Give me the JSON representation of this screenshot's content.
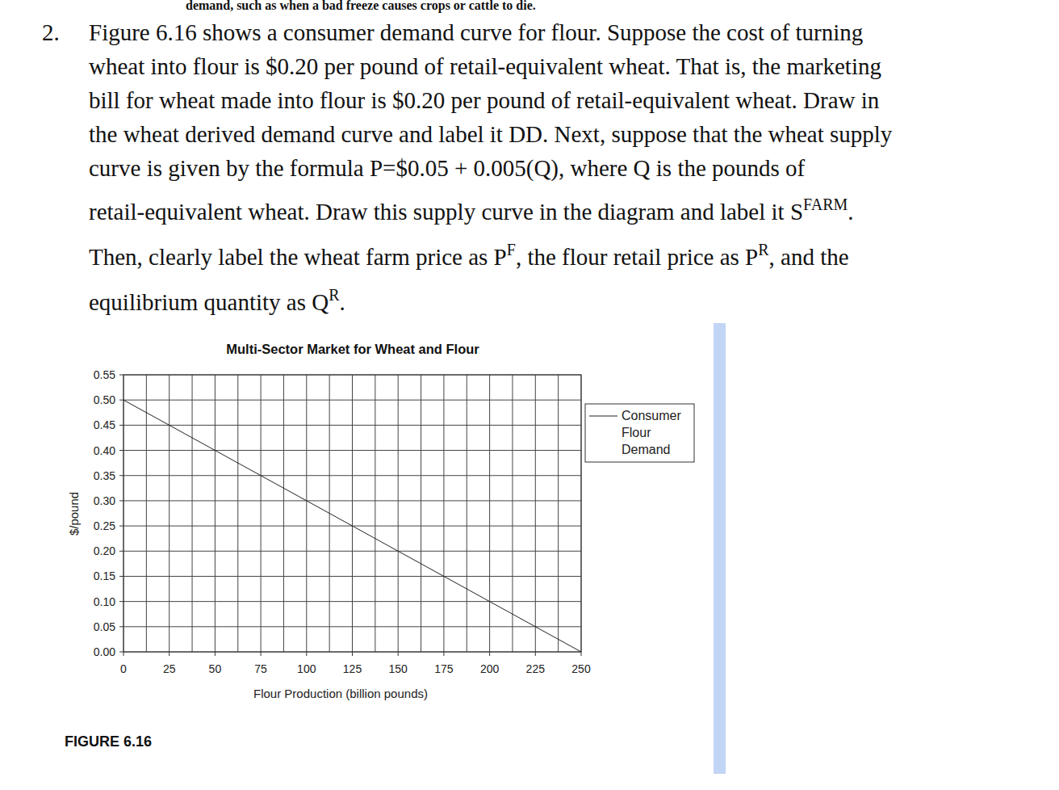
{
  "page": {
    "top_fragment": "demand, such as when a bad freeze causes crops or cattle to die.",
    "question": {
      "number": "2.",
      "lines": [
        [
          {
            "text": "Figure 6.16 shows a consumer demand curve for flour. Suppose the cost of turning"
          }
        ],
        [
          {
            "text": "wheat into flour is $0.20 per pound of retail-equivalent wheat. That is, the marketing"
          }
        ],
        [
          {
            "text": "bill for wheat made into flour is $0.20 per pound of retail-equivalent wheat. Draw in"
          }
        ],
        [
          {
            "text": "the wheat derived demand curve and label it DD. Next, suppose that the wheat supply"
          }
        ],
        [
          {
            "text": "curve is given by the formula P=$0.05 + 0.005(Q), where Q is the pounds of"
          }
        ],
        [
          {
            "text": "retail-equivalent wheat. Draw this supply curve in the diagram and label it S"
          },
          {
            "sup": "FARM"
          },
          {
            "text": "."
          }
        ],
        [
          {
            "text": "Then, clearly label the wheat farm price as P"
          },
          {
            "sup": "F"
          },
          {
            "text": ", the flour retail price as P"
          },
          {
            "sup": "R"
          },
          {
            "text": ", and the"
          }
        ],
        [
          {
            "text": "equilibrium quantity as Q"
          },
          {
            "sup": "R"
          },
          {
            "text": "."
          }
        ]
      ]
    },
    "figure_label": "FIGURE 6.16"
  },
  "chart_data": {
    "type": "line",
    "title": "Multi-Sector Market for Wheat and Flour",
    "x_label": "Flour Production (billion pounds)",
    "y_label": "$/pound",
    "x": [
      0,
      25,
      50,
      75,
      100,
      125,
      150,
      175,
      200,
      225,
      250
    ],
    "series": [
      {
        "name": "Consumer Flour Demand",
        "color": "#222222",
        "line_style": "solid",
        "values": [
          0.5,
          0.45,
          0.4,
          0.35,
          0.3,
          0.25,
          0.2,
          0.15,
          0.1,
          0.05,
          0
        ]
      }
    ],
    "xlim": [
      0,
      250
    ],
    "ylim": [
      0,
      0.55
    ],
    "xticks": [
      0,
      25,
      50,
      75,
      100,
      125,
      150,
      175,
      200,
      225,
      250
    ],
    "yticks": [
      {
        "value": 0,
        "label": "0.00"
      },
      0.05,
      {
        "value": 0.1,
        "label": "0.10"
      },
      0.15,
      {
        "value": 0.2,
        "label": "0.20"
      },
      0.25,
      {
        "value": 0.3,
        "label": "0.30"
      },
      0.35,
      {
        "value": 0.4,
        "label": "0.40"
      },
      0.45,
      {
        "value": 0.5,
        "label": "0.50"
      },
      0.55
    ],
    "grid": true,
    "legend": "right"
  }
}
